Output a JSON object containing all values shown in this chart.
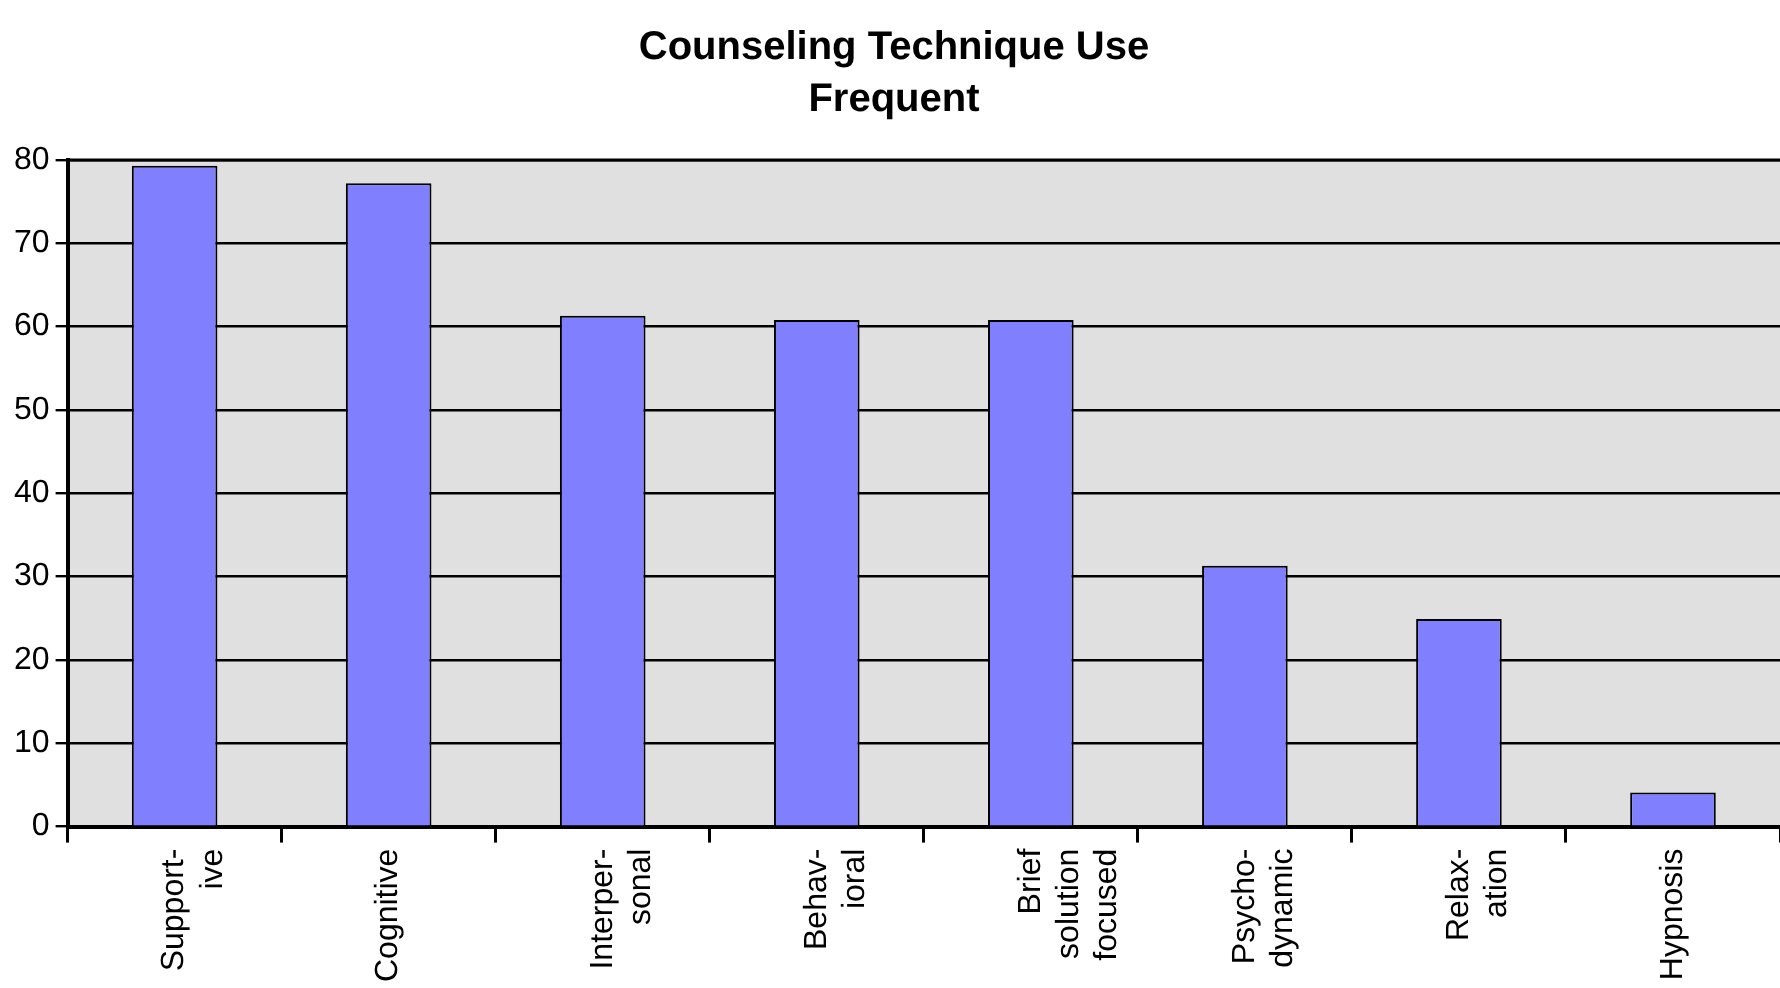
{
  "chart_data": {
    "type": "bar",
    "title": "Counseling Technique Use",
    "subtitle": "Frequent",
    "categories": [
      "Support-\nive",
      "Cognitive",
      "Interper-\nsonal",
      "Behav-\nioral",
      "Brief\nsolution\nfocused",
      "Psycho-\ndynamic",
      "Relax-\nation",
      "Hypnosis"
    ],
    "values": [
      79.3,
      77.2,
      61.3,
      60.8,
      60.8,
      31.3,
      24.9,
      4.1
    ],
    "color": "#8080ff",
    "ylim": [
      0,
      80
    ],
    "yticks": [
      0,
      10,
      20,
      30,
      40,
      50,
      60,
      70,
      80
    ],
    "grid": "y",
    "legend": false
  }
}
